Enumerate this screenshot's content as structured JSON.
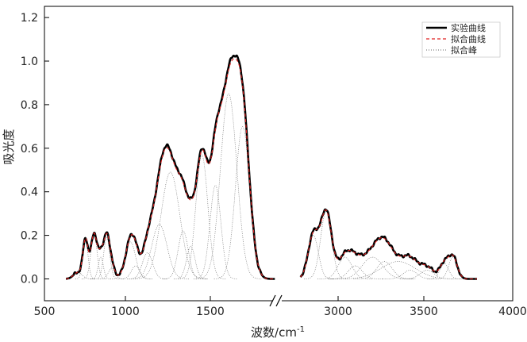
{
  "chart_data": {
    "type": "line",
    "xlabel": "波数/cm",
    "xlabel_superscript": "-1",
    "ylabel": "吸光度",
    "ylim": [
      -0.1,
      1.25
    ],
    "yticks": [
      0.0,
      0.2,
      0.4,
      0.6,
      0.8,
      1.0,
      1.2
    ],
    "ytick_labels": [
      "0.0",
      "0.2",
      "0.4",
      "0.6",
      "0.8",
      "1.0",
      "1.2"
    ],
    "xticks": [
      500,
      1000,
      1500,
      3000,
      3500,
      4000
    ],
    "xtick_labels": [
      "500",
      "1000",
      "1500",
      "3000",
      "3500",
      "4000"
    ],
    "broken_x_axis": true,
    "x_segments": [
      [
        500,
        1900
      ],
      [
        2700,
        4000
      ]
    ],
    "legend": {
      "position": "top-right",
      "entries": [
        {
          "label": "实验曲线",
          "color": "#000000",
          "style": "solid"
        },
        {
          "label": "拟合曲线",
          "color": "#e02020",
          "style": "dashed"
        },
        {
          "label": "拟合峰",
          "color": "#555555",
          "style": "dotted"
        }
      ]
    },
    "peaks": [
      {
        "center": 720,
        "height": 0.03,
        "width": 25
      },
      {
        "center": 765,
        "height": 0.18,
        "width": 15
      },
      {
        "center": 815,
        "height": 0.21,
        "width": 18
      },
      {
        "center": 855,
        "height": 0.1,
        "width": 15
      },
      {
        "center": 890,
        "height": 0.19,
        "width": 18
      },
      {
        "center": 920,
        "height": 0.05,
        "width": 20
      },
      {
        "center": 1030,
        "height": 0.17,
        "width": 30
      },
      {
        "center": 1060,
        "height": 0.06,
        "width": 25
      },
      {
        "center": 1130,
        "height": 0.12,
        "width": 30
      },
      {
        "center": 1200,
        "height": 0.25,
        "width": 45
      },
      {
        "center": 1265,
        "height": 0.49,
        "width": 55
      },
      {
        "center": 1340,
        "height": 0.22,
        "width": 30
      },
      {
        "center": 1385,
        "height": 0.15,
        "width": 25
      },
      {
        "center": 1450,
        "height": 0.57,
        "width": 35
      },
      {
        "center": 1530,
        "height": 0.43,
        "width": 32
      },
      {
        "center": 1608,
        "height": 0.85,
        "width": 48
      },
      {
        "center": 1690,
        "height": 0.7,
        "width": 42
      },
      {
        "center": 2855,
        "height": 0.2,
        "width": 30
      },
      {
        "center": 2930,
        "height": 0.31,
        "width": 32
      },
      {
        "center": 3040,
        "height": 0.1,
        "width": 40
      },
      {
        "center": 3100,
        "height": 0.06,
        "width": 40
      },
      {
        "center": 3200,
        "height": 0.1,
        "width": 60
      },
      {
        "center": 3270,
        "height": 0.08,
        "width": 45
      },
      {
        "center": 3350,
        "height": 0.08,
        "width": 100
      },
      {
        "center": 3420,
        "height": 0.04,
        "width": 40
      },
      {
        "center": 3520,
        "height": 0.04,
        "width": 40
      },
      {
        "center": 3620,
        "height": 0.07,
        "width": 25
      },
      {
        "center": 3670,
        "height": 0.1,
        "width": 25
      }
    ]
  }
}
